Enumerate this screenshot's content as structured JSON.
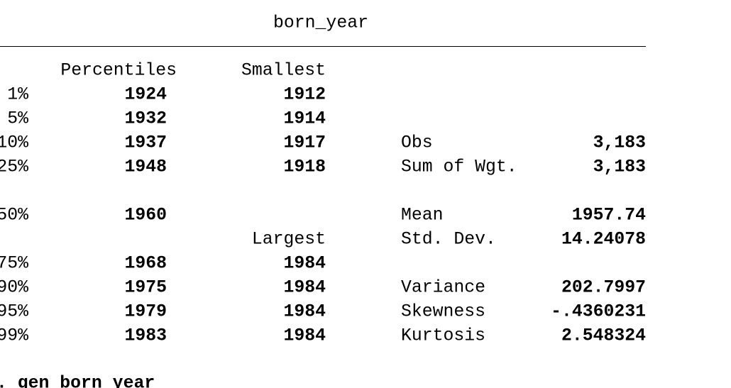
{
  "title": "born_year",
  "headers": {
    "percentiles": "Percentiles",
    "smallest": "Smallest",
    "largest": "Largest"
  },
  "percentiles": [
    {
      "label": "1%",
      "value": "1924"
    },
    {
      "label": "5%",
      "value": "1932"
    },
    {
      "label": "10%",
      "value": "1937"
    },
    {
      "label": "25%",
      "value": "1948"
    },
    {
      "label": "50%",
      "value": "1960"
    },
    {
      "label": "75%",
      "value": "1968"
    },
    {
      "label": "90%",
      "value": "1975"
    },
    {
      "label": "95%",
      "value": "1979"
    },
    {
      "label": "99%",
      "value": "1983"
    }
  ],
  "smallest": [
    "1912",
    "1914",
    "1917",
    "1918"
  ],
  "largest": [
    "1984",
    "1984",
    "1984",
    "1984"
  ],
  "stats": [
    {
      "label": "Obs",
      "value": "3,183"
    },
    {
      "label": "Sum of Wgt.",
      "value": "3,183"
    },
    {
      "label": "Mean",
      "value": "1957.74"
    },
    {
      "label": "Std. Dev.",
      "value": "14.24078"
    },
    {
      "label": "Variance",
      "value": "202.7997"
    },
    {
      "label": "Skewness",
      "value": "-.4360231"
    },
    {
      "label": "Kurtosis",
      "value": "2.548324"
    }
  ],
  "command": ". gen born_year"
}
